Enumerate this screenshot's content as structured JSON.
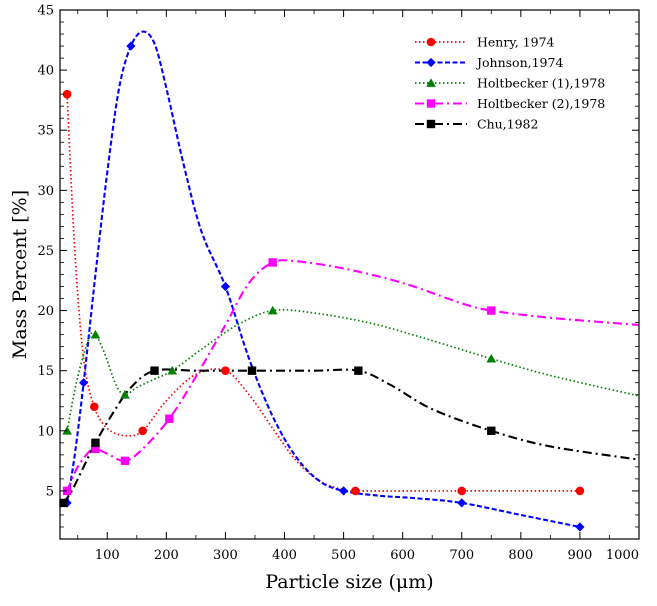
{
  "chart_data": {
    "type": "line",
    "xlabel": "Particle size (μm)",
    "ylabel": "Mass Percent [%]",
    "xlim": [
      20,
      1000
    ],
    "ylim": [
      1,
      45
    ],
    "xticks": [
      100,
      200,
      300,
      400,
      500,
      600,
      700,
      800,
      900,
      1000
    ],
    "yticks": [
      5,
      10,
      15,
      20,
      25,
      30,
      35,
      40,
      45
    ],
    "grid": false,
    "legend_position": "top-right",
    "series": [
      {
        "name": "Henry, 1974",
        "color": "#ff0000",
        "marker": "circle",
        "line_style": "dotted",
        "points": [
          [
            32,
            38
          ],
          [
            78,
            12
          ],
          [
            160,
            10
          ],
          [
            300,
            15
          ],
          [
            520,
            5
          ],
          [
            700,
            5
          ],
          [
            900,
            5
          ]
        ],
        "curve": [
          [
            32,
            38
          ],
          [
            45,
            25
          ],
          [
            60,
            16
          ],
          [
            78,
            12
          ],
          [
            100,
            10.2
          ],
          [
            130,
            9.6
          ],
          [
            160,
            10
          ],
          [
            200,
            12.5
          ],
          [
            250,
            14.7
          ],
          [
            300,
            15
          ],
          [
            340,
            13
          ],
          [
            380,
            10.2
          ],
          [
            420,
            7.5
          ],
          [
            460,
            5.8
          ],
          [
            500,
            5.1
          ],
          [
            520,
            5
          ],
          [
            700,
            5
          ],
          [
            900,
            5
          ]
        ]
      },
      {
        "name": "Johnson,1974",
        "color": "#0000ff",
        "marker": "diamond",
        "line_style": "dashed",
        "points": [
          [
            32,
            4
          ],
          [
            60,
            14
          ],
          [
            140,
            42
          ],
          [
            300,
            22
          ],
          [
            500,
            5
          ],
          [
            700,
            4
          ],
          [
            900,
            2
          ]
        ],
        "curve": [
          [
            32,
            4
          ],
          [
            45,
            8
          ],
          [
            60,
            14
          ],
          [
            80,
            23
          ],
          [
            100,
            31.5
          ],
          [
            120,
            38.5
          ],
          [
            140,
            42
          ],
          [
            160,
            43.2
          ],
          [
            180,
            42.2
          ],
          [
            200,
            38.5
          ],
          [
            230,
            32
          ],
          [
            260,
            26.5
          ],
          [
            300,
            22
          ],
          [
            340,
            16
          ],
          [
            380,
            11.2
          ],
          [
            420,
            7.8
          ],
          [
            460,
            5.8
          ],
          [
            500,
            5
          ],
          [
            560,
            4.6
          ],
          [
            620,
            4.4
          ],
          [
            700,
            4
          ],
          [
            800,
            3
          ],
          [
            900,
            2
          ]
        ]
      },
      {
        "name": "Holtbecker (1),1978",
        "color": "#008000",
        "marker": "triangle",
        "line_style": "dotted",
        "points": [
          [
            32,
            10
          ],
          [
            80,
            18
          ],
          [
            130,
            13
          ],
          [
            210,
            15
          ],
          [
            380,
            20
          ],
          [
            750,
            16
          ]
        ],
        "curve": [
          [
            32,
            10
          ],
          [
            50,
            14.5
          ],
          [
            70,
            17.8
          ],
          [
            80,
            18
          ],
          [
            95,
            16.5
          ],
          [
            115,
            13.8
          ],
          [
            130,
            13
          ],
          [
            150,
            13.6
          ],
          [
            180,
            14.3
          ],
          [
            210,
            15
          ],
          [
            260,
            16.8
          ],
          [
            320,
            18.8
          ],
          [
            380,
            20
          ],
          [
            450,
            19.8
          ],
          [
            550,
            18.9
          ],
          [
            650,
            17.5
          ],
          [
            750,
            16
          ],
          [
            850,
            14.6
          ],
          [
            1000,
            12.9
          ]
        ]
      },
      {
        "name": "Holtbecker (2),1978",
        "color": "#ff00ff",
        "marker": "square",
        "line_style": "dashdot",
        "points": [
          [
            32,
            5
          ],
          [
            80,
            8.5
          ],
          [
            130,
            7.5
          ],
          [
            205,
            11
          ],
          [
            380,
            24
          ],
          [
            750,
            20
          ]
        ],
        "curve": [
          [
            32,
            5
          ],
          [
            50,
            7
          ],
          [
            70,
            8.3
          ],
          [
            80,
            8.5
          ],
          [
            100,
            8.1
          ],
          [
            130,
            7.5
          ],
          [
            160,
            8.5
          ],
          [
            205,
            11
          ],
          [
            250,
            14.5
          ],
          [
            300,
            18.8
          ],
          [
            340,
            22.3
          ],
          [
            380,
            24
          ],
          [
            420,
            24.1
          ],
          [
            500,
            23.5
          ],
          [
            600,
            22.3
          ],
          [
            700,
            20.6
          ],
          [
            750,
            20
          ],
          [
            850,
            19.4
          ],
          [
            1000,
            18.8
          ]
        ]
      },
      {
        "name": "Chu,1982",
        "color": "#000000",
        "marker": "square",
        "line_style": "dashdot",
        "points": [
          [
            26,
            4
          ],
          [
            80,
            9
          ],
          [
            180,
            15
          ],
          [
            345,
            15
          ],
          [
            525,
            15
          ],
          [
            750,
            10
          ]
        ],
        "curve": [
          [
            26,
            4
          ],
          [
            40,
            5
          ],
          [
            60,
            7
          ],
          [
            80,
            9
          ],
          [
            110,
            11.5
          ],
          [
            140,
            13.6
          ],
          [
            180,
            15
          ],
          [
            250,
            15
          ],
          [
            345,
            15
          ],
          [
            450,
            15
          ],
          [
            525,
            15
          ],
          [
            580,
            13.8
          ],
          [
            650,
            11.8
          ],
          [
            750,
            10
          ],
          [
            850,
            8.7
          ],
          [
            1000,
            7.6
          ]
        ]
      }
    ]
  }
}
